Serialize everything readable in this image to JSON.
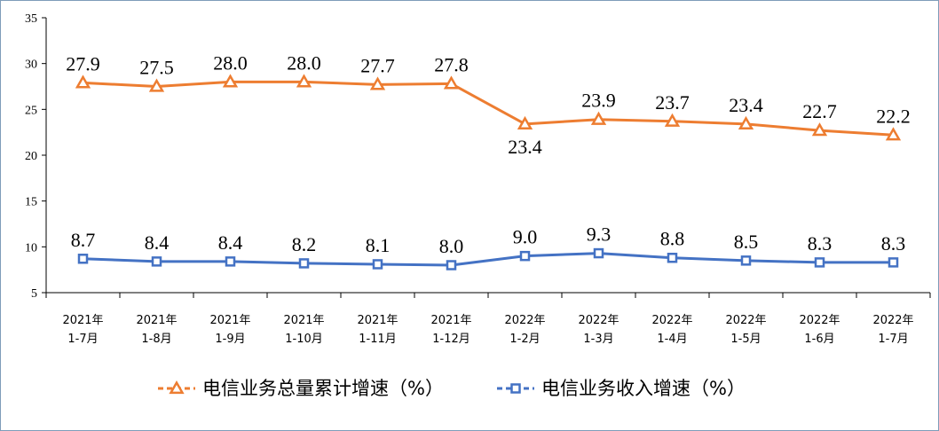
{
  "chart_data": {
    "type": "line",
    "categories": [
      [
        "2021年",
        "1-7月"
      ],
      [
        "2021年",
        "1-8月"
      ],
      [
        "2021年",
        "1-9月"
      ],
      [
        "2021年",
        "1-10月"
      ],
      [
        "2021年",
        "1-11月"
      ],
      [
        "2021年",
        "1-12月"
      ],
      [
        "2022年",
        "1-2月"
      ],
      [
        "2022年",
        "1-3月"
      ],
      [
        "2022年",
        "1-4月"
      ],
      [
        "2022年",
        "1-5月"
      ],
      [
        "2022年",
        "1-6月"
      ],
      [
        "2022年",
        "1-7月"
      ]
    ],
    "series": [
      {
        "name": "电信业务总量累计增速（%）",
        "marker": "triangle",
        "color": "#ed7d31",
        "values": [
          27.9,
          27.5,
          28.0,
          28.0,
          27.7,
          27.8,
          23.4,
          23.9,
          23.7,
          23.4,
          22.7,
          22.2
        ],
        "labels": [
          "27.9",
          "27.5",
          "28.0",
          "28.0",
          "27.7",
          "27.8",
          "23.4",
          "23.9",
          "23.7",
          "23.4",
          "22.7",
          "22.2"
        ],
        "label_positions": [
          "above",
          "above",
          "above",
          "above",
          "above",
          "above",
          "below",
          "above",
          "above",
          "above",
          "above",
          "above"
        ]
      },
      {
        "name": "电信业务收入增速（%）",
        "marker": "square",
        "color": "#4472c4",
        "values": [
          8.7,
          8.4,
          8.4,
          8.2,
          8.1,
          8.0,
          9.0,
          9.3,
          8.8,
          8.5,
          8.3,
          8.3
        ],
        "labels": [
          "8.7",
          "8.4",
          "8.4",
          "8.2",
          "8.1",
          "8.0",
          "9.0",
          "9.3",
          "8.8",
          "8.5",
          "8.3",
          "8.3"
        ],
        "label_positions": [
          "above",
          "above",
          "above",
          "above",
          "above",
          "above",
          "above",
          "above",
          "above",
          "above",
          "above",
          "above"
        ]
      }
    ],
    "yticks": [
      "5",
      "10",
      "15",
      "20",
      "25",
      "30",
      "35"
    ],
    "ylim": [
      5,
      35
    ],
    "title": "",
    "xlabel": "",
    "ylabel": "",
    "grid": false,
    "legend_position": "bottom"
  }
}
